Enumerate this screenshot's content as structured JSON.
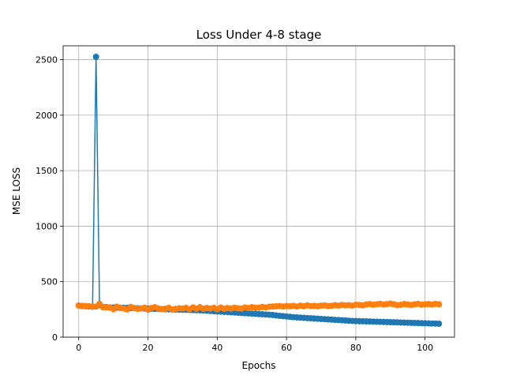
{
  "chart_data": {
    "type": "line",
    "title": "Loss Under 4-8 stage",
    "xlabel": "Epochs",
    "ylabel": "MSE LOSS",
    "xlim": [
      -4.5,
      108.5
    ],
    "ylim": [
      0,
      2625
    ],
    "xticks": [
      0,
      20,
      40,
      60,
      80,
      100
    ],
    "yticks": [
      0,
      500,
      1000,
      1500,
      2000,
      2500
    ],
    "grid": true,
    "markers": true,
    "series": [
      {
        "color": "#1f77b4",
        "x": [
          0,
          1,
          2,
          3,
          4,
          5,
          6,
          7,
          8,
          9,
          10,
          11,
          12,
          13,
          14,
          15,
          16,
          17,
          18,
          19,
          20,
          21,
          22,
          23,
          24,
          25,
          26,
          27,
          28,
          29,
          30,
          31,
          32,
          33,
          34,
          35,
          36,
          37,
          38,
          39,
          40,
          41,
          42,
          43,
          44,
          45,
          46,
          47,
          48,
          49,
          50,
          51,
          52,
          53,
          54,
          55,
          56,
          57,
          58,
          59,
          60,
          61,
          62,
          63,
          64,
          65,
          66,
          67,
          68,
          69,
          70,
          71,
          72,
          73,
          74,
          75,
          76,
          77,
          78,
          79,
          80,
          81,
          82,
          83,
          84,
          85,
          86,
          87,
          88,
          89,
          90,
          91,
          92,
          93,
          94,
          95,
          96,
          97,
          98,
          99,
          100,
          101,
          102,
          103,
          104
        ],
        "values": [
          285,
          280,
          278,
          276,
          274,
          2525,
          290,
          272,
          270,
          268,
          267,
          266,
          265,
          264,
          263,
          262,
          261,
          260,
          259,
          258,
          257,
          256,
          255,
          254,
          253,
          252,
          251,
          250,
          249,
          248,
          247,
          246,
          245,
          244,
          243,
          242,
          240,
          238,
          236,
          234,
          232,
          230,
          228,
          226,
          224,
          222,
          220,
          218,
          216,
          214,
          212,
          210,
          208,
          206,
          204,
          202,
          200,
          196,
          192,
          189,
          186,
          183,
          180,
          178,
          176,
          174,
          172,
          170,
          168,
          166,
          164,
          162,
          160,
          158,
          156,
          154,
          152,
          150,
          148,
          146,
          145,
          144,
          143,
          142,
          141,
          140,
          139,
          138,
          137,
          136,
          135,
          134,
          133,
          132,
          131,
          130,
          129,
          128,
          127,
          126,
          125,
          124,
          123,
          122,
          121
        ]
      },
      {
        "color": "#ff7f0e",
        "x": [
          0,
          1,
          2,
          3,
          4,
          5,
          6,
          7,
          8,
          9,
          10,
          11,
          12,
          13,
          14,
          15,
          16,
          17,
          18,
          19,
          20,
          21,
          22,
          23,
          24,
          25,
          26,
          27,
          28,
          29,
          30,
          31,
          32,
          33,
          34,
          35,
          36,
          37,
          38,
          39,
          40,
          41,
          42,
          43,
          44,
          45,
          46,
          47,
          48,
          49,
          50,
          51,
          52,
          53,
          54,
          55,
          56,
          57,
          58,
          59,
          60,
          61,
          62,
          63,
          64,
          65,
          66,
          67,
          68,
          69,
          70,
          71,
          72,
          73,
          74,
          75,
          76,
          77,
          78,
          79,
          80,
          81,
          82,
          83,
          84,
          85,
          86,
          87,
          88,
          89,
          90,
          91,
          92,
          93,
          94,
          95,
          96,
          97,
          98,
          99,
          100,
          101,
          102,
          103,
          104
        ],
        "values": [
          285,
          282,
          280,
          278,
          276,
          275,
          300,
          270,
          268,
          266,
          252,
          275,
          262,
          258,
          250,
          272,
          262,
          255,
          258,
          265,
          248,
          262,
          270,
          258,
          252,
          256,
          264,
          250,
          255,
          260,
          258,
          264,
          252,
          268,
          256,
          270,
          256,
          262,
          258,
          264,
          252,
          266,
          256,
          262,
          258,
          265,
          260,
          258,
          268,
          262,
          270,
          264,
          266,
          272,
          268,
          274,
          276,
          278,
          280,
          276,
          280,
          278,
          282,
          276,
          284,
          278,
          286,
          280,
          282,
          278,
          284,
          286,
          280,
          282,
          288,
          284,
          290,
          286,
          288,
          284,
          292,
          290,
          286,
          294,
          298,
          292,
          296,
          300,
          294,
          298,
          302,
          296,
          288,
          292,
          298,
          294,
          290,
          296,
          300,
          292,
          296,
          298,
          294,
          300,
          296
        ]
      }
    ]
  }
}
